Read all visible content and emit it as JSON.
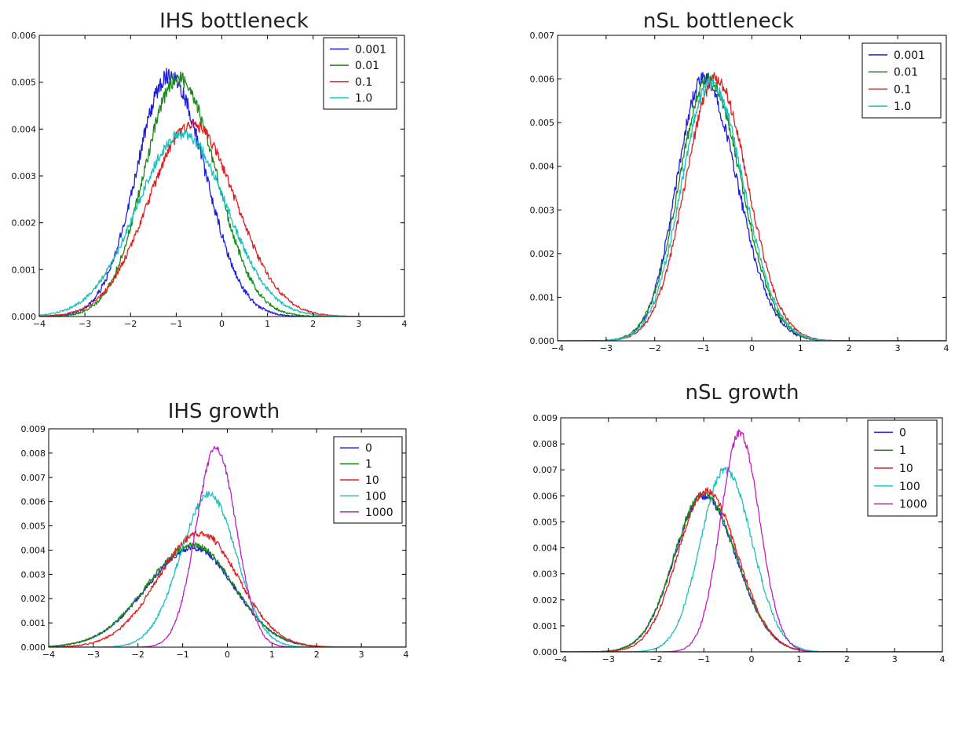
{
  "chart_data": [
    {
      "type": "line",
      "title": "IHS bottleneck",
      "xlim": [
        -4,
        4
      ],
      "ylim": [
        0,
        0.006
      ],
      "xticks": [
        "−4",
        "−3",
        "−2",
        "−1",
        "0",
        "1",
        "2",
        "3",
        "4"
      ],
      "yticks": [
        "0.000",
        "0.001",
        "0.002",
        "0.003",
        "0.004",
        "0.005",
        "0.006"
      ],
      "legend_position": "top-right",
      "grid": false,
      "series": [
        {
          "name": "0.001",
          "color": "#1f1fdd",
          "mu": -1.15,
          "sigma_left": 0.72,
          "sigma_right": 0.78,
          "peak": 0.00515,
          "noise": 0.00018
        },
        {
          "name": "0.01",
          "color": "#1a8a1a",
          "mu": -0.95,
          "sigma_left": 0.75,
          "sigma_right": 0.82,
          "peak": 0.0051,
          "noise": 0.00016
        },
        {
          "name": "0.1",
          "color": "#e02020",
          "mu": -0.65,
          "sigma_left": 0.95,
          "sigma_right": 0.95,
          "peak": 0.0041,
          "noise": 0.00012
        },
        {
          "name": "1.0",
          "color": "#1fbfbf",
          "mu": -0.85,
          "sigma_left": 1.0,
          "sigma_right": 0.95,
          "peak": 0.0039,
          "noise": 0.00012
        }
      ]
    },
    {
      "type": "line",
      "title": "nSʟ bottleneck",
      "xlim": [
        -4,
        4
      ],
      "ylim": [
        0,
        0.007
      ],
      "xticks": [
        "−4",
        "−3",
        "−2",
        "−1",
        "0",
        "1",
        "2",
        "3",
        "4"
      ],
      "yticks": [
        "0.000",
        "0.001",
        "0.002",
        "0.003",
        "0.004",
        "0.005",
        "0.006",
        "0.007"
      ],
      "legend_position": "top-right",
      "grid": false,
      "series": [
        {
          "name": "0.001",
          "color": "#1f1fdd",
          "mu": -1.0,
          "sigma_left": 0.55,
          "sigma_right": 0.7,
          "peak": 0.006,
          "noise": 0.00018
        },
        {
          "name": "0.01",
          "color": "#1a8a1a",
          "mu": -0.9,
          "sigma_left": 0.6,
          "sigma_right": 0.68,
          "peak": 0.006,
          "noise": 0.00015
        },
        {
          "name": "0.1",
          "color": "#e02020",
          "mu": -0.75,
          "sigma_left": 0.62,
          "sigma_right": 0.66,
          "peak": 0.006,
          "noise": 0.00015
        },
        {
          "name": "1.0",
          "color": "#1fbfbf",
          "mu": -0.85,
          "sigma_left": 0.6,
          "sigma_right": 0.68,
          "peak": 0.0059,
          "noise": 0.00015
        }
      ]
    },
    {
      "type": "line",
      "title": "IHS growth",
      "xlim": [
        -4,
        4
      ],
      "ylim": [
        0,
        0.009
      ],
      "xticks": [
        "−4",
        "−3",
        "−2",
        "−1",
        "0",
        "1",
        "2",
        "3",
        "4"
      ],
      "yticks": [
        "0.000",
        "0.001",
        "0.002",
        "0.003",
        "0.004",
        "0.005",
        "0.006",
        "0.007",
        "0.008",
        "0.009"
      ],
      "legend_position": "top-right",
      "grid": false,
      "series": [
        {
          "name": "0",
          "color": "#1f1fdd",
          "mu": -0.75,
          "sigma_left": 1.05,
          "sigma_right": 0.9,
          "peak": 0.0041,
          "noise": 0.00012
        },
        {
          "name": "1",
          "color": "#1a8a1a",
          "mu": -0.75,
          "sigma_left": 1.05,
          "sigma_right": 0.9,
          "peak": 0.0042,
          "noise": 0.00012
        },
        {
          "name": "10",
          "color": "#e02020",
          "mu": -0.6,
          "sigma_left": 0.95,
          "sigma_right": 0.85,
          "peak": 0.0047,
          "noise": 0.00014
        },
        {
          "name": "100",
          "color": "#1fbfbf",
          "mu": -0.4,
          "sigma_left": 0.65,
          "sigma_right": 0.6,
          "peak": 0.0063,
          "noise": 0.00015
        },
        {
          "name": "1000",
          "color": "#c21fc2",
          "mu": -0.25,
          "sigma_left": 0.45,
          "sigma_right": 0.45,
          "peak": 0.0082,
          "noise": 0.00015
        }
      ]
    },
    {
      "type": "line",
      "title": "nSʟ growth",
      "xlim": [
        -4,
        4
      ],
      "ylim": [
        0,
        0.009
      ],
      "xticks": [
        "−4",
        "−3",
        "−2",
        "−1",
        "0",
        "1",
        "2",
        "3",
        "4"
      ],
      "yticks": [
        "0.000",
        "0.001",
        "0.002",
        "0.003",
        "0.004",
        "0.005",
        "0.006",
        "0.007",
        "0.008",
        "0.009"
      ],
      "legend_position": "top-right",
      "grid": false,
      "series": [
        {
          "name": "0",
          "color": "#1f1fdd",
          "mu": -1.0,
          "sigma_left": 0.62,
          "sigma_right": 0.68,
          "peak": 0.006,
          "noise": 0.00015
        },
        {
          "name": "1",
          "color": "#1a8a1a",
          "mu": -1.0,
          "sigma_left": 0.62,
          "sigma_right": 0.68,
          "peak": 0.0061,
          "noise": 0.00015
        },
        {
          "name": "10",
          "color": "#e02020",
          "mu": -0.95,
          "sigma_left": 0.6,
          "sigma_right": 0.66,
          "peak": 0.0062,
          "noise": 0.00015
        },
        {
          "name": "100",
          "color": "#1fbfbf",
          "mu": -0.55,
          "sigma_left": 0.52,
          "sigma_right": 0.56,
          "peak": 0.007,
          "noise": 0.00015
        },
        {
          "name": "1000",
          "color": "#c21fc2",
          "mu": -0.25,
          "sigma_left": 0.4,
          "sigma_right": 0.42,
          "peak": 0.0084,
          "noise": 0.00015
        }
      ]
    }
  ]
}
